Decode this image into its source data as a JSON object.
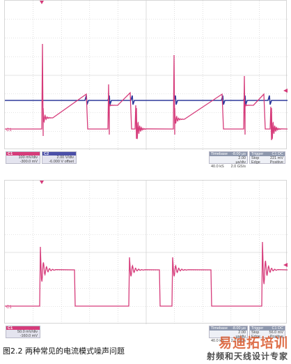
{
  "colors": {
    "ch1": "#d63b7a",
    "ch2": "#2e3a9c",
    "grid": "#c8c8c8",
    "marker": "#d63b7a"
  },
  "top_scope": {
    "ch1": {
      "header": "C1",
      "scale": "100 mV/div",
      "offset": "-300.0 mV"
    },
    "ch2": {
      "header": "C2",
      "scale": "2.00 V/div",
      "offset": "-6.000 V offset"
    },
    "timebase": {
      "label": "Timebase",
      "value": "-8.00 µs",
      "per_div": "2.00 µs/div",
      "samples": "40.0 kS",
      "rate": "2.0 GS/s"
    },
    "trigger": {
      "label": "Trigger",
      "tag": "C1 DC",
      "mode": "Stop",
      "level": "221 mV",
      "type": "Edge",
      "slope": "Positive"
    },
    "ground_marker": "C1",
    "ground_marker_ch2": "C2"
  },
  "bottom_scope": {
    "ch1": {
      "header": "C1",
      "scale": "50.0 mV/div",
      "offset": "-160.0 mV"
    },
    "timebase": {
      "label": "Timebase",
      "value": "-8.00 µs",
      "per_div": "2.00 µs/div",
      "samples": "40.0 kS",
      "rate": "2.0 GS/s"
    },
    "trigger": {
      "label": "Trigger",
      "tag": "C1 DC",
      "mode": "Stop",
      "level": "56.0 mV",
      "type": "Edge",
      "slope": "Positive"
    },
    "ground_marker": "C1"
  },
  "caption": "图2.2 两种常见的电流模式噪声问题",
  "watermark": {
    "top": "易迪拓培训",
    "bottom": "射频和天线设计专家"
  }
}
